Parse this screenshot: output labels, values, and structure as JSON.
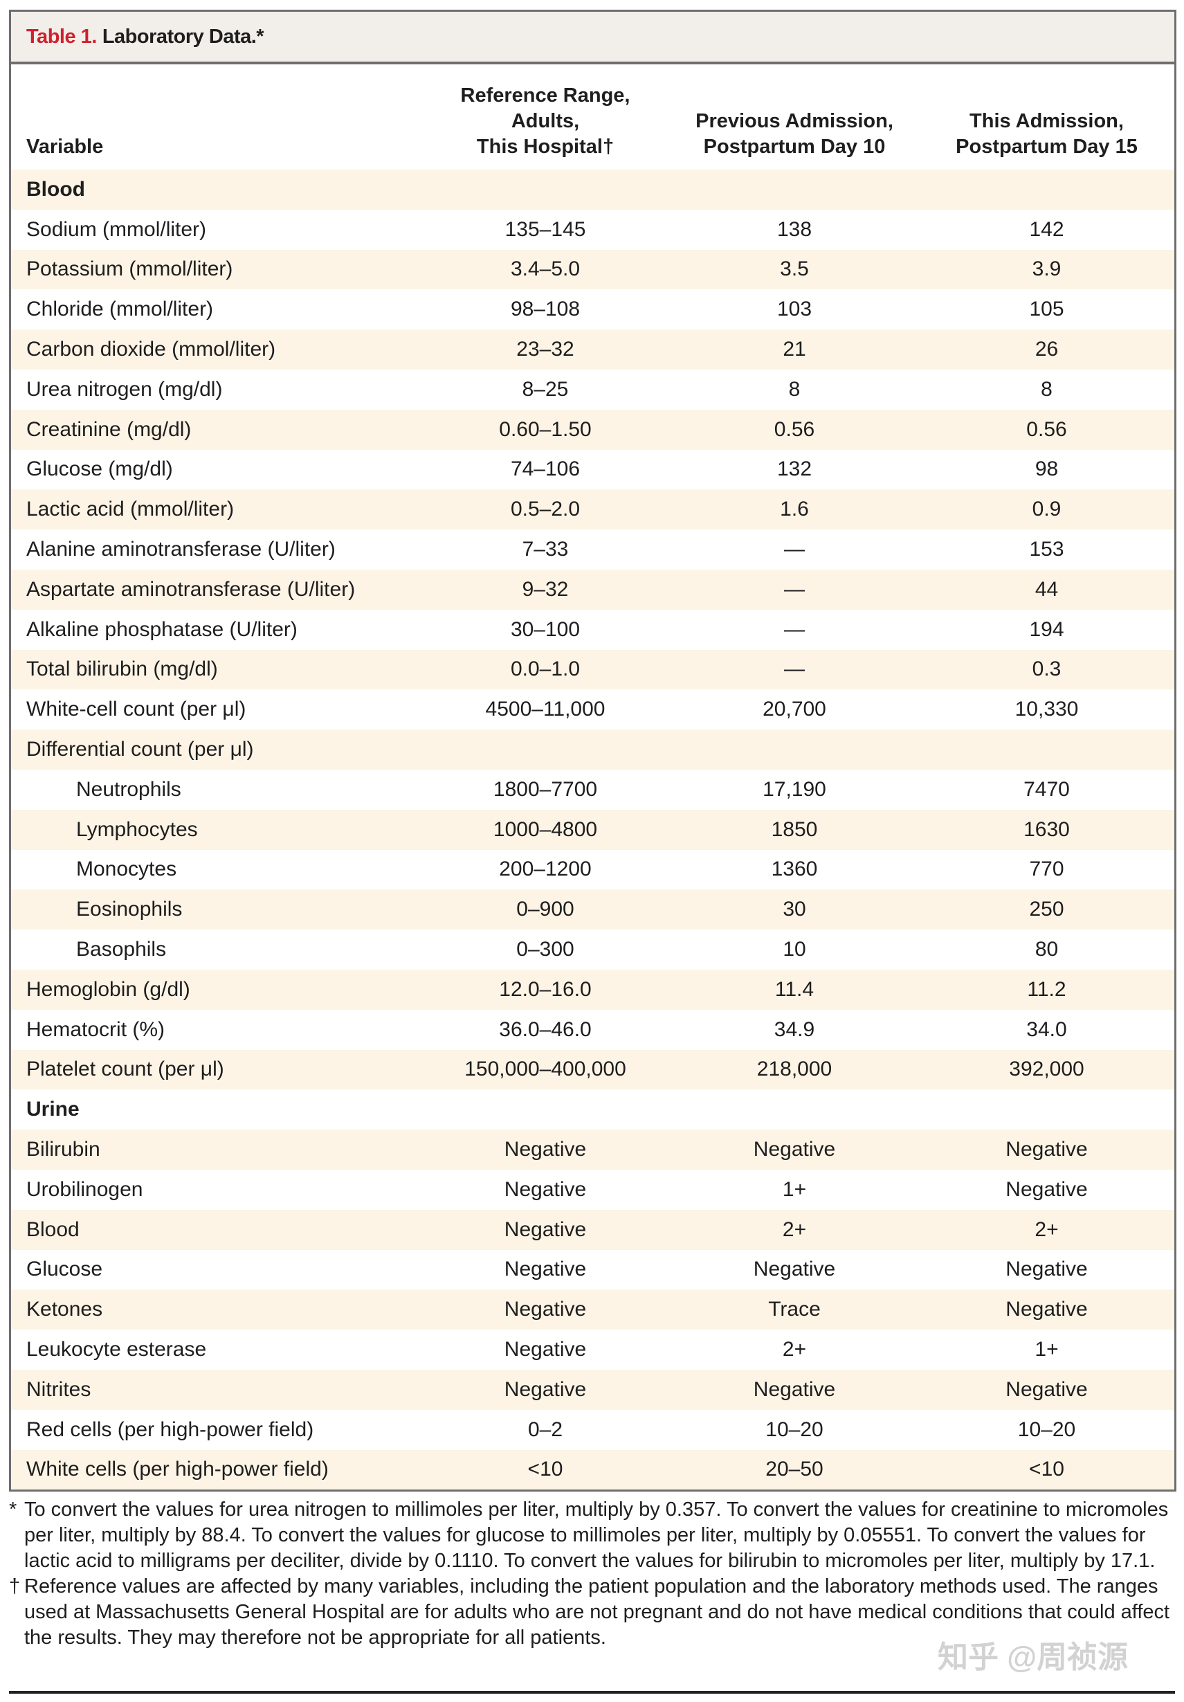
{
  "title": {
    "number": "Table 1.",
    "text": "Laboratory Data.*"
  },
  "columns": [
    {
      "lines": [
        "Variable"
      ]
    },
    {
      "lines": [
        "Reference Range,",
        "Adults,",
        "This Hospital†"
      ]
    },
    {
      "lines": [
        "Previous Admission,",
        "Postpartum Day 10"
      ]
    },
    {
      "lines": [
        "This Admission,",
        "Postpartum Day 15"
      ]
    }
  ],
  "rows": [
    {
      "type": "section",
      "cells": [
        "Blood",
        "",
        "",
        ""
      ]
    },
    {
      "cells": [
        "Sodium (mmol/liter)",
        "135–145",
        "138",
        "142"
      ]
    },
    {
      "cells": [
        "Potassium (mmol/liter)",
        "3.4–5.0",
        "3.5",
        "3.9"
      ]
    },
    {
      "cells": [
        "Chloride (mmol/liter)",
        "98–108",
        "103",
        "105"
      ]
    },
    {
      "cells": [
        "Carbon dioxide (mmol/liter)",
        "23–32",
        "21",
        "26"
      ]
    },
    {
      "cells": [
        "Urea nitrogen (mg/dl)",
        "8–25",
        "8",
        "8"
      ]
    },
    {
      "cells": [
        "Creatinine (mg/dl)",
        "0.60–1.50",
        "0.56",
        "0.56"
      ]
    },
    {
      "cells": [
        "Glucose (mg/dl)",
        "74–106",
        "132",
        "98"
      ]
    },
    {
      "cells": [
        "Lactic acid (mmol/liter)",
        "0.5–2.0",
        "1.6",
        "0.9"
      ]
    },
    {
      "cells": [
        "Alanine aminotransferase (U/liter)",
        "7–33",
        "—",
        "153"
      ]
    },
    {
      "cells": [
        "Aspartate aminotransferase (U/liter)",
        "9–32",
        "—",
        "44"
      ]
    },
    {
      "cells": [
        "Alkaline phosphatase (U/liter)",
        "30–100",
        "—",
        "194"
      ]
    },
    {
      "cells": [
        "Total bilirubin (mg/dl)",
        "0.0–1.0",
        "—",
        "0.3"
      ]
    },
    {
      "cells": [
        "White-cell count (per μl)",
        "4500–11,000",
        "20,700",
        "10,330"
      ]
    },
    {
      "cells": [
        "Differential count (per μl)",
        "",
        "",
        ""
      ]
    },
    {
      "indent": true,
      "cells": [
        "Neutrophils",
        "1800–7700",
        "17,190",
        "7470"
      ]
    },
    {
      "indent": true,
      "cells": [
        "Lymphocytes",
        "1000–4800",
        "1850",
        "1630"
      ]
    },
    {
      "indent": true,
      "cells": [
        "Monocytes",
        "200–1200",
        "1360",
        "770"
      ]
    },
    {
      "indent": true,
      "cells": [
        "Eosinophils",
        "0–900",
        "30",
        "250"
      ]
    },
    {
      "indent": true,
      "cells": [
        "Basophils",
        "0–300",
        "10",
        "80"
      ]
    },
    {
      "cells": [
        "Hemoglobin (g/dl)",
        "12.0–16.0",
        "11.4",
        "11.2"
      ]
    },
    {
      "cells": [
        "Hematocrit (%)",
        "36.0–46.0",
        "34.9",
        "34.0"
      ]
    },
    {
      "cells": [
        "Platelet count (per μl)",
        "150,000–400,000",
        "218,000",
        "392,000"
      ]
    },
    {
      "type": "section",
      "cells": [
        "Urine",
        "",
        "",
        ""
      ]
    },
    {
      "cells": [
        "Bilirubin",
        "Negative",
        "Negative",
        "Negative"
      ]
    },
    {
      "cells": [
        "Urobilinogen",
        "Negative",
        "1+",
        "Negative"
      ]
    },
    {
      "cells": [
        "Blood",
        "Negative",
        "2+",
        "2+"
      ]
    },
    {
      "cells": [
        "Glucose",
        "Negative",
        "Negative",
        "Negative"
      ]
    },
    {
      "cells": [
        "Ketones",
        "Negative",
        "Trace",
        "Negative"
      ]
    },
    {
      "cells": [
        "Leukocyte esterase",
        "Negative",
        "2+",
        "1+"
      ]
    },
    {
      "cells": [
        "Nitrites",
        "Negative",
        "Negative",
        "Negative"
      ]
    },
    {
      "cells": [
        "Red cells (per high-power field)",
        "0–2",
        "10–20",
        "10–20"
      ]
    },
    {
      "cells": [
        "White cells (per high-power field)",
        "<10",
        "20–50",
        "<10"
      ]
    }
  ],
  "footnotes": [
    {
      "mark": "*",
      "text": "To convert the values for urea nitrogen to millimoles per liter, multiply by 0.357. To convert the values for creatinine to micromoles per liter, multiply by 88.4. To convert the values for glucose to millimoles per liter, multiply by 0.05551. To convert the values for lactic acid to milligrams per deciliter, divide by 0.1110. To convert the values for bilirubin to micromoles per liter, multiply by 17.1."
    },
    {
      "mark": "†",
      "text": "Reference values are affected by many variables, including the patient population and the laboratory methods used. The ranges used at Massachusetts General Hospital are for adults who are not pregnant and do not have medical conditions that could affect the results. They may therefore not be appropriate for all patients."
    }
  ],
  "watermark": "知乎 @周祯源",
  "colors": {
    "title_number": "#d0202d",
    "header_bg": "#f2efea",
    "stripe": "#fdf4e6",
    "border": "#6e6e6e"
  }
}
